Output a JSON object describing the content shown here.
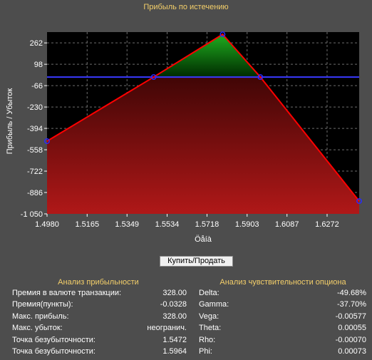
{
  "title": "Прибыль по истечению",
  "button_label": "Купить/Продать",
  "chart_data": {
    "type": "line",
    "ylabel": "Прибыль / Убыток",
    "xlabel": "Öåíà",
    "xlim": [
      1.498,
      1.642
    ],
    "ylim": [
      -1050,
      345
    ],
    "x_ticks": [
      1.498,
      1.5165,
      1.5349,
      1.5534,
      1.5718,
      1.5903,
      1.6087,
      1.6272
    ],
    "x_tick_labels": [
      "1.4980",
      "1.5165",
      "1.5349",
      "1.5534",
      "1.5718",
      "1.5903",
      "1.6087",
      "1.6272"
    ],
    "y_ticks": [
      262,
      98,
      -66,
      -230,
      -394,
      -558,
      -722,
      -886,
      -1050
    ],
    "y_tick_labels": [
      "262",
      "98",
      "-66",
      "-230",
      "-394",
      "-558",
      "-722",
      "-886",
      "-1 050"
    ],
    "zero_line": 0,
    "grid": true,
    "series": [
      {
        "color": "#ff0000",
        "x": [
          1.498,
          1.5472,
          1.579,
          1.5964,
          1.642
        ],
        "y": [
          -492,
          0,
          328,
          0,
          -952
        ]
      }
    ],
    "profit_fill_color": "#1fae1f",
    "loss_fill_color": "#b01818"
  },
  "profit_analysis": {
    "title": "Анализ прибыльности",
    "rows": [
      {
        "label": "Премия в валюте транзакции:",
        "value": "328.00"
      },
      {
        "label": "Премия(пункты):",
        "value": "-0.0328"
      },
      {
        "label": "Макс. прибыль:",
        "value": "328.00"
      },
      {
        "label": "Макс. убыток:",
        "value": "неогранич."
      },
      {
        "label": "Точка безубыточности:",
        "value": "1.5472"
      },
      {
        "label": "Точка безубыточности:",
        "value": "1.5964"
      }
    ]
  },
  "sensitivity_analysis": {
    "title": "Анализ чувствительности опциона",
    "rows": [
      {
        "label": "Delta:",
        "value": "-49.68%"
      },
      {
        "label": "Gamma:",
        "value": "-37.70%"
      },
      {
        "label": "Vega:",
        "value": "-0.00577"
      },
      {
        "label": "Theta:",
        "value": "0.00055"
      },
      {
        "label": "Rho:",
        "value": "-0.00070"
      },
      {
        "label": "Phi:",
        "value": "0.00073"
      }
    ]
  }
}
